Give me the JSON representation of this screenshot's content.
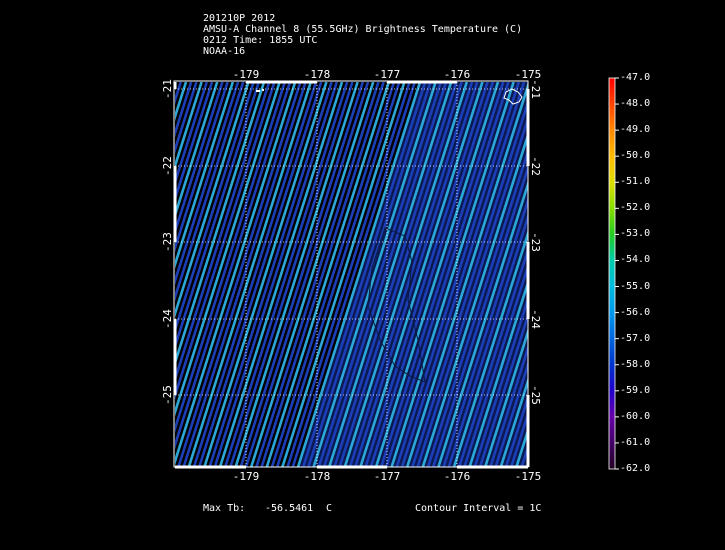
{
  "header": {
    "storm_year": "201210P 2012",
    "product": "AMSU-A Channel 8 (55.5GHz) Brightness Temperature (C)",
    "time": "0212 Time: 1855 UTC",
    "satellite": "NOAA-16"
  },
  "map": {
    "lon_ticks": [
      "-179",
      "-178",
      "-177",
      "-176",
      "-175"
    ],
    "lat_ticks": [
      "-21",
      "-22",
      "-23",
      "-24",
      "-25"
    ],
    "lon_range": [
      -180,
      -175
    ],
    "lat_range": [
      -26,
      -21
    ],
    "swath_color_low": "#1c3fb8",
    "swath_color_high": "#2ca8d8"
  },
  "colorbar": {
    "labels": [
      "-47.0",
      "-48.0",
      "-49.0",
      "-50.0",
      "-51.0",
      "-52.0",
      "-53.0",
      "-54.0",
      "-55.0",
      "-56.0",
      "-57.0",
      "-58.0",
      "-59.0",
      "-60.0",
      "-61.0",
      "-62.0"
    ],
    "colors": [
      "#ff0000",
      "#ff4400",
      "#ff8800",
      "#ffbb00",
      "#dddd00",
      "#88dd00",
      "#22cc22",
      "#00ccaa",
      "#00bbdd",
      "#0099ee",
      "#0066dd",
      "#0033cc",
      "#2200cc",
      "#6600aa",
      "#440066",
      "#220022"
    ]
  },
  "footer": {
    "max_label": "Max Tb:",
    "max_value": "-56.5461",
    "max_unit": "C",
    "contour": "Contour Interval = 1C"
  }
}
